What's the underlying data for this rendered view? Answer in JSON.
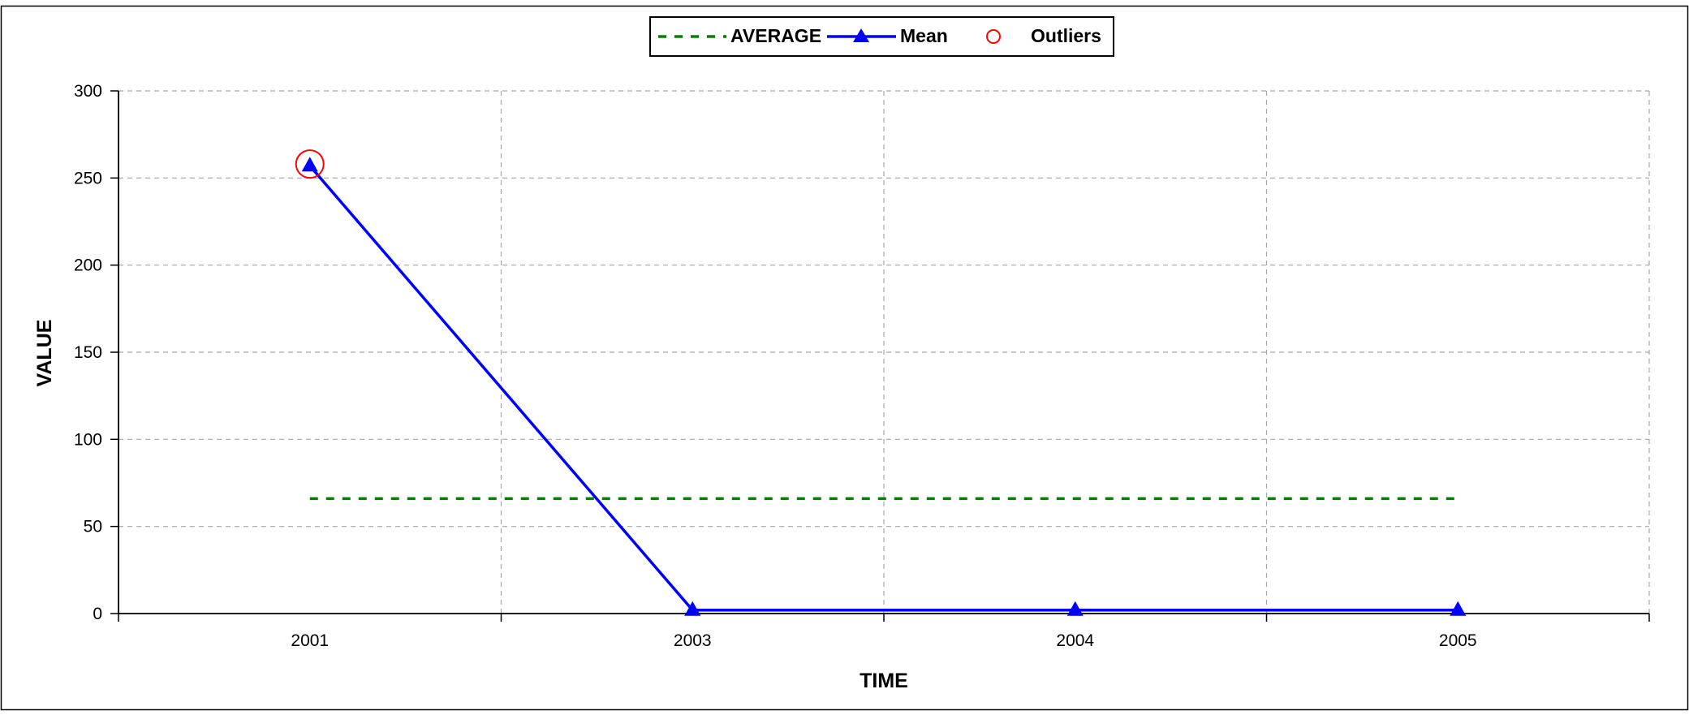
{
  "chart_data": {
    "type": "line",
    "title": "",
    "xlabel": "TIME",
    "ylabel": "VALUE",
    "categories": [
      "2001",
      "2003",
      "2004",
      "2005"
    ],
    "ylim": [
      0,
      300
    ],
    "yticks": [
      0,
      50,
      100,
      150,
      200,
      250,
      300
    ],
    "grid": true,
    "legend_position": "top-center",
    "series": [
      {
        "name": "AVERAGE",
        "style": "dashed",
        "color": "#008000",
        "values": [
          66,
          66,
          66,
          66
        ]
      },
      {
        "name": "Mean",
        "style": "solid-triangle-markers",
        "color": "#0000ff",
        "values": [
          257,
          2,
          2,
          2
        ]
      },
      {
        "name": "Outliers",
        "style": "open-circle-markers",
        "color": "#ff0000",
        "values": [
          258,
          null,
          null,
          null
        ]
      }
    ]
  }
}
